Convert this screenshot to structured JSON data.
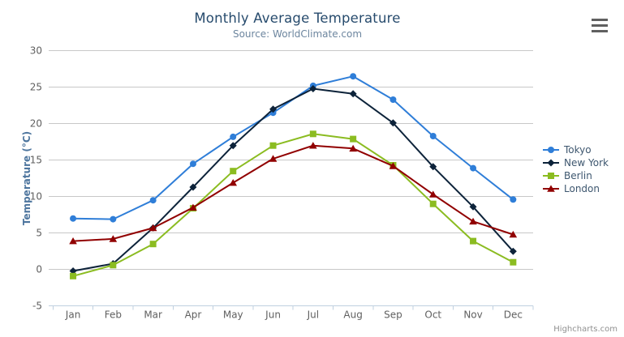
{
  "credits": {
    "label": "Highcharts.com"
  },
  "export_menu": {
    "icon": "hamburger-icon"
  },
  "chart_data": {
    "type": "line",
    "title": "Monthly Average Temperature",
    "subtitle": "Source: WorldClimate.com",
    "xlabel": "",
    "ylabel": "Temperature (°C)",
    "ylim": [
      -5,
      30
    ],
    "yticks": [
      -5,
      0,
      5,
      10,
      15,
      20,
      25,
      30
    ],
    "grid": true,
    "legend_position": "right",
    "categories": [
      "Jan",
      "Feb",
      "Mar",
      "Apr",
      "May",
      "Jun",
      "Jul",
      "Aug",
      "Sep",
      "Oct",
      "Nov",
      "Dec"
    ],
    "series": [
      {
        "name": "Tokyo",
        "color": "#2f7ed8",
        "marker": "circle",
        "values": [
          7.0,
          6.9,
          9.5,
          14.5,
          18.2,
          21.5,
          25.2,
          26.5,
          23.3,
          18.3,
          13.9,
          9.6
        ]
      },
      {
        "name": "New York",
        "color": "#0d233a",
        "marker": "diamond",
        "values": [
          -0.2,
          0.8,
          5.7,
          11.3,
          17.0,
          22.0,
          24.8,
          24.1,
          20.1,
          14.1,
          8.6,
          2.5
        ]
      },
      {
        "name": "Berlin",
        "color": "#8bbc21",
        "marker": "square",
        "values": [
          -0.9,
          0.6,
          3.5,
          8.4,
          13.5,
          17.0,
          18.6,
          17.9,
          14.3,
          9.0,
          3.9,
          1.0
        ]
      },
      {
        "name": "London",
        "color": "#910000",
        "marker": "triangle",
        "values": [
          3.9,
          4.2,
          5.7,
          8.5,
          11.9,
          15.2,
          17.0,
          16.6,
          14.2,
          10.3,
          6.6,
          4.8
        ]
      }
    ],
    "colors": {
      "grid": "#C8C8C8",
      "axis_line": "#C0D0E0",
      "title": "#274b6d",
      "subtitle": "#6D869F",
      "axis_labels": "#606060",
      "y_axis_title": "#4d759e",
      "legend_text": "#3E576F",
      "credits": "#909090"
    }
  }
}
